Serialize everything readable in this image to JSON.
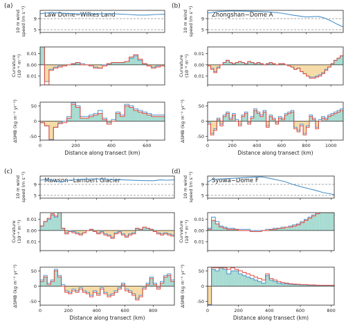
{
  "figure": {
    "xlabel": "Distance along transect (km)",
    "wind_ylabel": [
      "10 m wind",
      "speed (m s⁻¹)"
    ],
    "curv_ylabel": [
      "Curvature",
      "(10⁻⁶ m⁻¹)"
    ],
    "smb_ylabel": "ΔSMB (kg m⁻² yr⁻¹)",
    "colors": {
      "model_a": "#4a90c8",
      "model_b": "#e0473a",
      "pos_fill": "#a8dcd2",
      "neg_fill": "#f6dba6",
      "dashed": "#888888"
    }
  },
  "chart_data": [
    {
      "type": "line",
      "panel_label": "(a)",
      "title": "Law Dome−Wilkes Land",
      "xticks": [
        0,
        200,
        400,
        600
      ],
      "xlim": [
        0,
        700
      ],
      "wind": {
        "yticks": [
          5,
          9
        ],
        "ylim": [
          4,
          12
        ],
        "dashed_lines": [
          5,
          9
        ],
        "x": [
          0,
          60,
          120,
          200,
          300,
          400,
          500,
          550,
          600,
          650,
          700
        ],
        "values": [
          10.8,
          11.2,
          11.0,
          10.8,
          10.7,
          10.8,
          10.5,
          10.3,
          10.3,
          10.5,
          10.6
        ]
      },
      "curvature": {
        "yticks": [
          0.01,
          0.0,
          -0.01
        ],
        "ylim": [
          -0.018,
          0.016
        ],
        "step": 25,
        "model_a": [
          0.02,
          -0.015,
          -0.004,
          -0.002,
          -0.001,
          -0.001,
          0.0,
          0.001,
          0.002,
          0.001,
          0.0,
          -0.001,
          -0.002,
          -0.003,
          0.0,
          0.001,
          0.002,
          0.002,
          0.002,
          0.003,
          0.006,
          0.008,
          0.004,
          0.001,
          -0.001,
          -0.002,
          -0.001,
          -0.001
        ],
        "model_b": [
          0.02,
          -0.018,
          -0.005,
          -0.003,
          -0.002,
          -0.001,
          0.0,
          0.001,
          0.002,
          0.0,
          0.0,
          -0.001,
          -0.003,
          -0.003,
          -0.001,
          0.001,
          0.002,
          0.002,
          0.002,
          0.003,
          0.007,
          0.009,
          0.005,
          0.001,
          -0.001,
          -0.003,
          -0.002,
          -0.001
        ]
      },
      "smb": {
        "yticks": [
          50,
          0,
          -50
        ],
        "ylim": [
          -62,
          62
        ],
        "step": 25,
        "model_a": [
          -5,
          -15,
          -60,
          -20,
          -5,
          0,
          15,
          60,
          50,
          15,
          15,
          20,
          25,
          35,
          10,
          -5,
          5,
          30,
          20,
          55,
          50,
          40,
          35,
          30,
          25,
          20,
          20,
          20
        ],
        "model_b": [
          -5,
          -15,
          -62,
          -20,
          -8,
          -5,
          10,
          55,
          45,
          10,
          10,
          15,
          20,
          25,
          5,
          -10,
          0,
          25,
          15,
          50,
          45,
          35,
          30,
          25,
          20,
          15,
          15,
          15
        ]
      }
    },
    {
      "type": "line",
      "panel_label": "(b)",
      "title": "Zhongshan−Dome A",
      "xticks": [
        0,
        200,
        400,
        600,
        800,
        1000
      ],
      "xlim": [
        0,
        1100
      ],
      "wind": {
        "yticks": [
          5,
          9
        ],
        "ylim": [
          4,
          12
        ],
        "dashed_lines": [
          5,
          9
        ],
        "x": [
          0,
          100,
          200,
          300,
          400,
          500,
          600,
          700,
          800,
          900,
          950,
          1000,
          1050,
          1100
        ],
        "values": [
          11.0,
          11.6,
          11.8,
          11.7,
          11.6,
          11.4,
          11.0,
          10.2,
          9.6,
          9.8,
          9.2,
          8.2,
          7.0,
          6.0
        ]
      },
      "curvature": {
        "yticks": [
          0.01,
          0.0,
          -0.01
        ],
        "ylim": [
          -0.018,
          0.016
        ],
        "step": 25,
        "model_a": [
          -0.001,
          -0.003,
          -0.006,
          -0.002,
          0.0,
          0.002,
          0.004,
          0.002,
          0.001,
          0.002,
          0.003,
          0.002,
          0.001,
          0.003,
          0.002,
          0.001,
          0.002,
          0.001,
          0.0,
          0.001,
          0.002,
          0.001,
          0.0,
          0.001,
          0.001,
          0.0,
          -0.001,
          -0.002,
          -0.004,
          -0.003,
          -0.006,
          -0.008,
          -0.01,
          -0.011,
          -0.011,
          -0.01,
          -0.009,
          -0.007,
          -0.004,
          -0.002,
          0.001,
          0.004,
          0.006,
          0.008,
          0.012
        ],
        "model_b": [
          -0.001,
          -0.004,
          -0.007,
          -0.003,
          0.0,
          0.002,
          0.004,
          0.002,
          0.001,
          0.002,
          0.003,
          0.002,
          0.001,
          0.003,
          0.002,
          0.001,
          0.002,
          0.001,
          0.0,
          0.001,
          0.002,
          0.001,
          0.0,
          0.001,
          0.001,
          0.0,
          -0.001,
          -0.002,
          -0.004,
          -0.003,
          -0.006,
          -0.008,
          -0.01,
          -0.012,
          -0.012,
          -0.011,
          -0.01,
          -0.008,
          -0.005,
          -0.002,
          0.001,
          0.004,
          0.006,
          0.008,
          0.012
        ]
      },
      "smb": {
        "yticks": [
          50,
          0,
          -50
        ],
        "ylim": [
          -62,
          62
        ],
        "step": 25,
        "model_a": [
          -5,
          -40,
          -25,
          10,
          -10,
          20,
          30,
          10,
          25,
          5,
          -10,
          20,
          30,
          -5,
          15,
          40,
          30,
          20,
          35,
          -15,
          20,
          10,
          -5,
          15,
          10,
          25,
          30,
          35,
          -20,
          -30,
          -10,
          -40,
          -15,
          20,
          10,
          -20,
          5,
          15,
          10,
          20,
          25,
          30,
          35,
          40,
          30
        ],
        "model_b": [
          -10,
          -45,
          -30,
          5,
          -15,
          15,
          25,
          5,
          20,
          0,
          -15,
          15,
          25,
          -10,
          10,
          35,
          25,
          15,
          30,
          -20,
          15,
          5,
          -10,
          10,
          5,
          20,
          25,
          30,
          -25,
          -35,
          -15,
          -45,
          -20,
          15,
          5,
          -25,
          0,
          10,
          5,
          15,
          20,
          25,
          30,
          35,
          25
        ]
      }
    },
    {
      "type": "line",
      "panel_label": "(c)",
      "title": "Mawson−Lambert Glacier",
      "xticks": [
        0,
        200,
        400,
        600,
        800
      ],
      "xlim": [
        0,
        950
      ],
      "wind": {
        "yticks": [
          5,
          9
        ],
        "ylim": [
          4,
          12
        ],
        "dashed_lines": [
          5,
          9
        ],
        "x": [
          0,
          50,
          100,
          150,
          200,
          300,
          400,
          500,
          600,
          700,
          800,
          850,
          900,
          950
        ],
        "values": [
          10.5,
          10.8,
          10.2,
          9.8,
          10.5,
          10.8,
          11.0,
          10.7,
          10.6,
          10.4,
          10.3,
          10.6,
          10.5,
          10.6
        ]
      },
      "curvature": {
        "yticks": [
          0.01,
          0.0,
          -0.01
        ],
        "ylim": [
          -0.018,
          0.016
        ],
        "step": 25,
        "model_a": [
          0.004,
          0.008,
          0.01,
          0.014,
          0.012,
          0.016,
          0.002,
          -0.002,
          0.0,
          -0.001,
          -0.002,
          -0.003,
          -0.002,
          0.0,
          0.001,
          -0.001,
          -0.002,
          -0.001,
          -0.003,
          -0.004,
          -0.006,
          -0.002,
          -0.001,
          -0.003,
          -0.005,
          -0.003,
          -0.002,
          0.002,
          0.001,
          0.003,
          0.002,
          0.001,
          -0.001,
          -0.002,
          -0.003,
          -0.002,
          -0.003,
          -0.004
        ],
        "model_b": [
          0.004,
          0.008,
          0.011,
          0.015,
          0.013,
          0.016,
          0.002,
          -0.003,
          -0.001,
          -0.002,
          -0.003,
          -0.004,
          -0.002,
          0.0,
          0.001,
          -0.001,
          -0.003,
          -0.002,
          -0.004,
          -0.005,
          -0.007,
          -0.003,
          -0.002,
          -0.004,
          -0.006,
          -0.004,
          -0.003,
          0.002,
          0.001,
          0.003,
          0.002,
          0.001,
          -0.001,
          -0.003,
          -0.004,
          -0.003,
          -0.004,
          -0.005
        ]
      },
      "smb": {
        "yticks": [
          50,
          0,
          -50
        ],
        "ylim": [
          -62,
          62
        ],
        "step": 25,
        "model_a": [
          20,
          35,
          10,
          20,
          55,
          35,
          5,
          -15,
          -20,
          -10,
          -15,
          -5,
          -15,
          -20,
          -30,
          -15,
          -25,
          -5,
          -20,
          -30,
          -25,
          -15,
          -5,
          10,
          -10,
          -15,
          -25,
          -40,
          -30,
          -5,
          10,
          30,
          10,
          -5,
          15,
          35,
          40,
          20
        ],
        "model_b": [
          15,
          30,
          5,
          15,
          50,
          30,
          0,
          -20,
          -25,
          -15,
          -20,
          -10,
          -20,
          -25,
          -35,
          -20,
          -30,
          -10,
          -25,
          -35,
          -30,
          -20,
          -10,
          5,
          -15,
          -20,
          -30,
          -45,
          -35,
          -10,
          5,
          25,
          5,
          -10,
          10,
          30,
          35,
          15
        ]
      }
    },
    {
      "type": "line",
      "panel_label": "(d)",
      "title": "Syowa−Dome F",
      "xticks": [
        0,
        200,
        400,
        600,
        800
      ],
      "xlim": [
        0,
        820
      ],
      "wind": {
        "yticks": [
          5,
          9
        ],
        "ylim": [
          4,
          12
        ],
        "dashed_lines": [
          5,
          9
        ],
        "x": [
          0,
          30,
          100,
          200,
          300,
          350,
          400,
          500,
          550,
          600,
          650,
          700,
          750,
          800,
          820
        ],
        "values": [
          9.8,
          10.8,
          11.0,
          11.3,
          11.6,
          11.7,
          11.2,
          10.0,
          9.0,
          8.2,
          7.5,
          6.8,
          6.0,
          5.5,
          5.2
        ]
      },
      "curvature": {
        "yticks": [
          0.01,
          0.0,
          -0.01
        ],
        "ylim": [
          -0.018,
          0.016
        ],
        "step": 25,
        "model_a": [
          0.002,
          0.012,
          0.008,
          0.004,
          0.003,
          0.002,
          0.002,
          0.001,
          0.001,
          0.001,
          0.001,
          0.0,
          0.0,
          0.0,
          0.0,
          0.001,
          0.001,
          0.002,
          0.002,
          0.003,
          0.003,
          0.004,
          0.005,
          0.006,
          0.008,
          0.01,
          0.012,
          0.014,
          0.016,
          0.016,
          0.016,
          0.016,
          0.016
        ],
        "model_b": [
          0.001,
          0.009,
          0.006,
          0.003,
          0.002,
          0.001,
          0.001,
          0.001,
          0.0,
          0.0,
          0.0,
          -0.001,
          -0.001,
          -0.001,
          0.0,
          0.0,
          0.001,
          0.001,
          0.002,
          0.002,
          0.003,
          0.003,
          0.004,
          0.005,
          0.007,
          0.009,
          0.011,
          0.013,
          0.015,
          0.016,
          0.016,
          0.016,
          0.016
        ]
      },
      "smb": {
        "yticks": [
          50,
          0,
          -50
        ],
        "ylim": [
          -62,
          62
        ],
        "step": 25,
        "model_a": [
          -60,
          55,
          50,
          60,
          55,
          40,
          50,
          50,
          40,
          35,
          30,
          25,
          20,
          15,
          10,
          35,
          20,
          15,
          10,
          8,
          8,
          6,
          5,
          5,
          4,
          4,
          3,
          3,
          3,
          2,
          2,
          2,
          2
        ],
        "model_b": [
          -62,
          60,
          60,
          60,
          60,
          55,
          60,
          55,
          50,
          45,
          40,
          35,
          30,
          25,
          20,
          40,
          25,
          20,
          15,
          12,
          10,
          8,
          7,
          6,
          5,
          5,
          4,
          4,
          3,
          3,
          3,
          3,
          3
        ]
      }
    }
  ]
}
